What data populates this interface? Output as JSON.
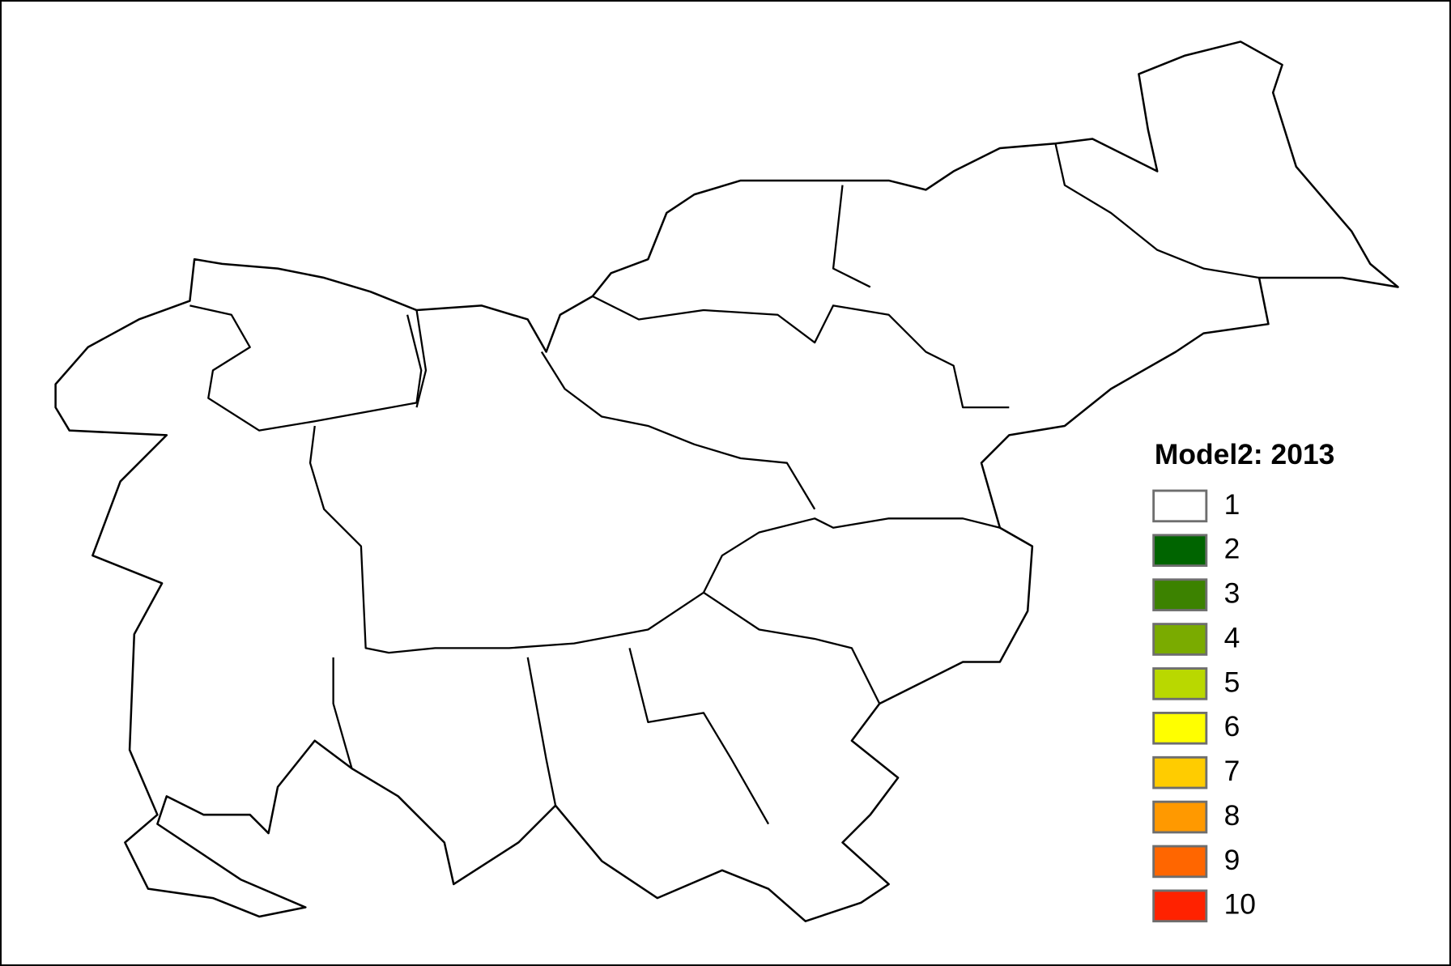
{
  "legend": {
    "title": "Model2: 2013",
    "items": [
      {
        "label": "1",
        "color": "#ffffff"
      },
      {
        "label": "2",
        "color": "#006400"
      },
      {
        "label": "3",
        "color": "#3c8200"
      },
      {
        "label": "4",
        "color": "#7aab00"
      },
      {
        "label": "5",
        "color": "#b9d800"
      },
      {
        "label": "6",
        "color": "#ffff00"
      },
      {
        "label": "7",
        "color": "#ffcc00"
      },
      {
        "label": "8",
        "color": "#ff9900"
      },
      {
        "label": "9",
        "color": "#ff6600"
      },
      {
        "label": "10",
        "color": "#ff2200"
      }
    ]
  }
}
